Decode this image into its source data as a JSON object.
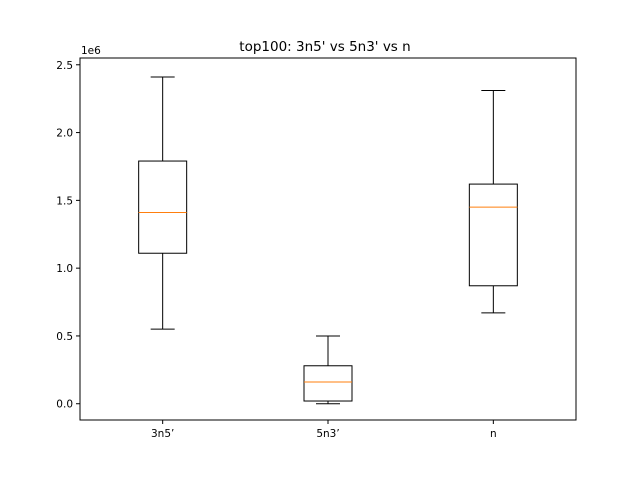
{
  "chart_data": {
    "type": "box",
    "title": "top100: 3n5' vs 5n3' vs n",
    "xlabel": "",
    "ylabel": "",
    "y_offset_label": "1e6",
    "ylim": [
      -0.12,
      2.55
    ],
    "yticks": [
      {
        "value": 0.0,
        "label": "0.0"
      },
      {
        "value": 0.5,
        "label": "0.5"
      },
      {
        "value": 1.0,
        "label": "1.0"
      },
      {
        "value": 1.5,
        "label": "1.5"
      },
      {
        "value": 2.0,
        "label": "2.0"
      },
      {
        "value": 2.5,
        "label": "2.5"
      }
    ],
    "categories": [
      "3n5’",
      "5n3’",
      "n"
    ],
    "boxes": [
      {
        "name": "3n5’",
        "whisker_low": 0.55,
        "q1": 1.11,
        "median": 1.41,
        "q3": 1.79,
        "whisker_high": 2.41
      },
      {
        "name": "5n3’",
        "whisker_low": 0.0,
        "q1": 0.02,
        "median": 0.16,
        "q3": 0.28,
        "whisker_high": 0.5
      },
      {
        "name": "n",
        "whisker_low": 0.67,
        "q1": 0.87,
        "median": 1.45,
        "q3": 1.62,
        "whisker_high": 2.31
      }
    ],
    "colors": {
      "box": "#000000",
      "median": "#ff7f0e",
      "background": "#ffffff"
    }
  }
}
